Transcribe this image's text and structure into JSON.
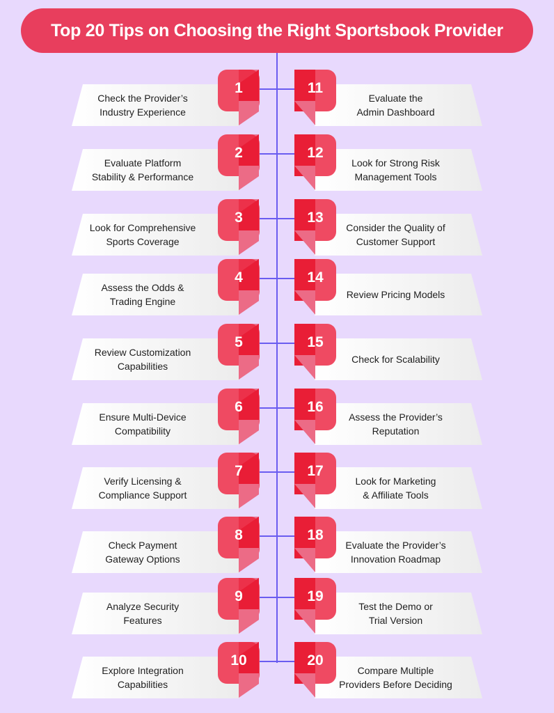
{
  "title": "Top 20 Tips on Choosing the Right Sportsbook Provider",
  "colors": {
    "background": "#e8d9fd",
    "title_bg": "#e83e5d",
    "badge_light": "#ef4a62",
    "badge_dark": "#e91e36",
    "connector": "#6a5cf0",
    "card": "#ffffff",
    "text": "#1e1e1e"
  },
  "tips": {
    "left": [
      {
        "num": "1",
        "text": "Check the Provider’s\nIndustry Experience"
      },
      {
        "num": "2",
        "text": "Evaluate Platform\nStability & Performance"
      },
      {
        "num": "3",
        "text": "Look for Comprehensive\nSports Coverage"
      },
      {
        "num": "4",
        "text": "Assess the Odds &\nTrading Engine"
      },
      {
        "num": "5",
        "text": "Review Customization\nCapabilities"
      },
      {
        "num": "6",
        "text": "Ensure Multi-Device\nCompatibility"
      },
      {
        "num": "7",
        "text": "Verify Licensing &\nCompliance Support"
      },
      {
        "num": "8",
        "text": "Check Payment\nGateway Options"
      },
      {
        "num": "9",
        "text": "Analyze Security\nFeatures"
      },
      {
        "num": "10",
        "text": "Explore Integration\nCapabilities"
      }
    ],
    "right": [
      {
        "num": "11",
        "text": "Evaluate the\nAdmin Dashboard"
      },
      {
        "num": "12",
        "text": "Look for Strong Risk\nManagement Tools"
      },
      {
        "num": "13",
        "text": "Consider the Quality of\nCustomer Support"
      },
      {
        "num": "14",
        "text": "Review Pricing Models"
      },
      {
        "num": "15",
        "text": "Check for Scalability"
      },
      {
        "num": "16",
        "text": "Assess the Provider’s\nReputation"
      },
      {
        "num": "17",
        "text": "Look for Marketing\n& Affiliate Tools"
      },
      {
        "num": "18",
        "text": "Evaluate the Provider’s\nInnovation Roadmap"
      },
      {
        "num": "19",
        "text": "Test the Demo or\nTrial Version"
      },
      {
        "num": "20",
        "text": "Compare Multiple\nProviders Before Deciding"
      }
    ]
  }
}
